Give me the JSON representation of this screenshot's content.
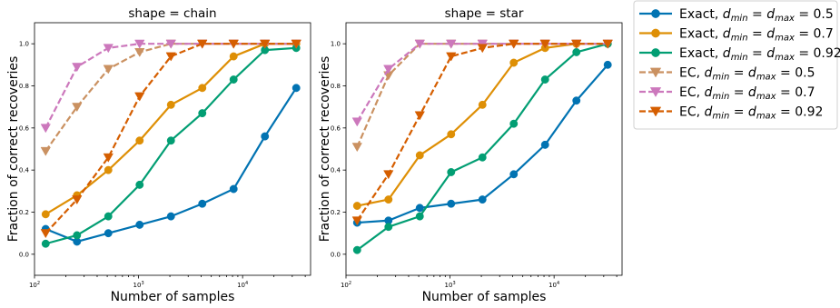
{
  "chart_data": [
    {
      "type": "line",
      "title": "shape = chain",
      "xlabel": "Number of samples",
      "ylabel": "Fraction of correct recoveries",
      "xscale": "log",
      "xlim": [
        100,
        45000
      ],
      "ylim": [
        -0.1,
        1.1
      ],
      "xticks": [
        {
          "value": 100,
          "base": "10",
          "exp": "2"
        },
        {
          "value": 1000,
          "base": "10",
          "exp": "3"
        },
        {
          "value": 10000,
          "base": "10",
          "exp": "4"
        }
      ],
      "yticks": [
        {
          "value": 0.0,
          "label": "0.0"
        },
        {
          "value": 0.2,
          "label": "0.2"
        },
        {
          "value": 0.4,
          "label": "0.4"
        },
        {
          "value": 0.6,
          "label": "0.6"
        },
        {
          "value": 0.8,
          "label": "0.8"
        },
        {
          "value": 1.0,
          "label": "1.0"
        }
      ],
      "x": [
        128,
        256,
        512,
        1024,
        2048,
        4096,
        8192,
        16384,
        32768
      ],
      "series": [
        {
          "key": "exact-05",
          "values": [
            0.12,
            0.06,
            0.1,
            0.14,
            0.18,
            0.24,
            0.31,
            0.56,
            0.79
          ]
        },
        {
          "key": "exact-07",
          "values": [
            0.19,
            0.28,
            0.4,
            0.54,
            0.71,
            0.79,
            0.94,
            1.0,
            1.0
          ]
        },
        {
          "key": "exact-092",
          "values": [
            0.05,
            0.09,
            0.18,
            0.33,
            0.54,
            0.67,
            0.83,
            0.97,
            0.98
          ]
        },
        {
          "key": "ec-05",
          "values": [
            0.49,
            0.7,
            0.88,
            0.96,
            1.0,
            1.0,
            1.0,
            1.0,
            1.0
          ]
        },
        {
          "key": "ec-07",
          "values": [
            0.6,
            0.89,
            0.98,
            1.0,
            1.0,
            1.0,
            1.0,
            1.0,
            1.0
          ]
        },
        {
          "key": "ec-092",
          "values": [
            0.1,
            0.26,
            0.46,
            0.75,
            0.94,
            1.0,
            1.0,
            1.0,
            1.0
          ]
        }
      ]
    },
    {
      "type": "line",
      "title": "shape = star",
      "xlabel": "Number of samples",
      "ylabel": "Fraction of correct recoveries",
      "xscale": "log",
      "xlim": [
        100,
        45000
      ],
      "ylim": [
        -0.1,
        1.1
      ],
      "xticks": [
        {
          "value": 100,
          "base": "10",
          "exp": "2"
        },
        {
          "value": 1000,
          "base": "10",
          "exp": "3"
        },
        {
          "value": 10000,
          "base": "10",
          "exp": "4"
        }
      ],
      "yticks": [
        {
          "value": 0.0,
          "label": "0.0"
        },
        {
          "value": 0.2,
          "label": "0.2"
        },
        {
          "value": 0.4,
          "label": "0.4"
        },
        {
          "value": 0.6,
          "label": "0.6"
        },
        {
          "value": 0.8,
          "label": "0.8"
        },
        {
          "value": 1.0,
          "label": "1.0"
        }
      ],
      "x": [
        128,
        256,
        512,
        1024,
        2048,
        4096,
        8192,
        16384,
        32768
      ],
      "series": [
        {
          "key": "exact-05",
          "values": [
            0.15,
            0.16,
            0.22,
            0.24,
            0.26,
            0.38,
            0.52,
            0.73,
            0.9
          ]
        },
        {
          "key": "exact-07",
          "values": [
            0.23,
            0.26,
            0.47,
            0.57,
            0.71,
            0.91,
            0.98,
            1.0,
            1.0
          ]
        },
        {
          "key": "exact-092",
          "values": [
            0.02,
            0.13,
            0.18,
            0.39,
            0.46,
            0.62,
            0.83,
            0.96,
            1.0
          ]
        },
        {
          "key": "ec-05",
          "values": [
            0.51,
            0.85,
            1.0,
            1.0,
            1.0,
            1.0,
            1.0,
            1.0,
            1.0
          ]
        },
        {
          "key": "ec-07",
          "values": [
            0.63,
            0.88,
            1.0,
            1.0,
            1.0,
            1.0,
            1.0,
            1.0,
            1.0
          ]
        },
        {
          "key": "ec-092",
          "values": [
            0.16,
            0.38,
            0.66,
            0.94,
            0.98,
            1.0,
            1.0,
            1.0,
            1.0
          ]
        }
      ]
    }
  ],
  "series_styles": [
    {
      "key": "exact-05",
      "prefix": "Exact, ",
      "value": "0.5",
      "color": "#0173b2",
      "dash": "solid",
      "marker": "circle"
    },
    {
      "key": "exact-07",
      "prefix": "Exact, ",
      "value": "0.7",
      "color": "#de8f05",
      "dash": "solid",
      "marker": "circle"
    },
    {
      "key": "exact-092",
      "prefix": "Exact, ",
      "value": "0.92",
      "color": "#029e73",
      "dash": "solid",
      "marker": "circle"
    },
    {
      "key": "ec-05",
      "prefix": "EC, ",
      "value": "0.5",
      "color": "#ca9161",
      "dash": "dashed",
      "marker": "triangle-down"
    },
    {
      "key": "ec-07",
      "prefix": "EC, ",
      "value": "0.7",
      "color": "#cc78bc",
      "dash": "dashed",
      "marker": "triangle-down"
    },
    {
      "key": "ec-092",
      "prefix": "EC, ",
      "value": "0.92",
      "color": "#d55e00",
      "dash": "dashed",
      "marker": "triangle-down"
    }
  ],
  "legend": {
    "placement": "outside-right",
    "d_symbol": "d",
    "min_sub": "min",
    "max_sub": "max"
  }
}
